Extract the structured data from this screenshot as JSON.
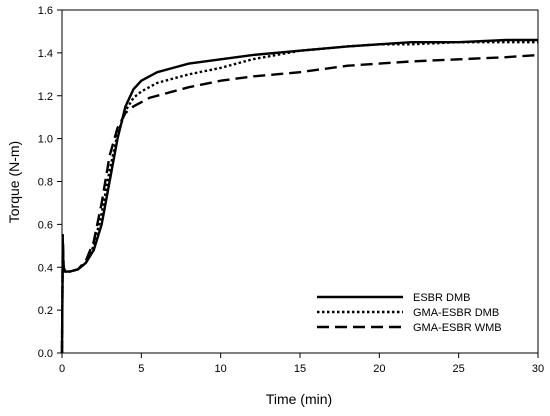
{
  "chart_data": {
    "type": "line",
    "xlabel": "Time (min)",
    "ylabel": "Torque (N-m)",
    "xlim": [
      0,
      30
    ],
    "ylim": [
      0.0,
      1.6
    ],
    "xticks": [
      0,
      5,
      10,
      15,
      20,
      25,
      30
    ],
    "xtick_labels": [
      "0",
      "5",
      "10",
      "15",
      "20",
      "25",
      "30"
    ],
    "yticks": [
      0.0,
      0.2,
      0.4,
      0.6,
      0.8,
      1.0,
      1.2,
      1.4,
      1.6
    ],
    "ytick_labels": [
      "0.0",
      "0.2",
      "0.4",
      "0.6",
      "0.8",
      "1.0",
      "1.2",
      "1.4",
      "1.6"
    ],
    "grid": false,
    "legend_position": "bottom-right",
    "series": [
      {
        "name": "ESBR DMB",
        "style": "solid",
        "x": [
          0,
          0.05,
          0.1,
          0.2,
          0.3,
          0.5,
          1.0,
          1.5,
          2.0,
          2.5,
          3.0,
          3.5,
          4.0,
          4.5,
          5.0,
          5.5,
          6.0,
          7.0,
          8.0,
          10.0,
          12.0,
          15.0,
          18.0,
          20.0,
          22.0,
          25.0,
          28.0,
          30.0
        ],
        "y": [
          0.0,
          0.5,
          0.4,
          0.38,
          0.38,
          0.38,
          0.39,
          0.42,
          0.48,
          0.6,
          0.8,
          1.0,
          1.15,
          1.23,
          1.27,
          1.29,
          1.31,
          1.33,
          1.35,
          1.37,
          1.39,
          1.41,
          1.43,
          1.44,
          1.45,
          1.45,
          1.46,
          1.46
        ]
      },
      {
        "name": "GMA-ESBR DMB",
        "style": "dotted",
        "x": [
          0,
          0.05,
          0.1,
          0.2,
          0.3,
          0.5,
          1.0,
          1.5,
          2.0,
          2.5,
          3.0,
          3.5,
          4.0,
          4.5,
          5.0,
          5.5,
          6.0,
          7.0,
          8.0,
          10.0,
          12.0,
          15.0,
          18.0,
          20.0,
          22.0,
          25.0,
          28.0,
          30.0
        ],
        "y": [
          0.0,
          0.52,
          0.4,
          0.38,
          0.38,
          0.38,
          0.39,
          0.42,
          0.5,
          0.65,
          0.85,
          1.02,
          1.13,
          1.19,
          1.22,
          1.24,
          1.26,
          1.28,
          1.3,
          1.33,
          1.37,
          1.41,
          1.43,
          1.44,
          1.44,
          1.45,
          1.45,
          1.45
        ]
      },
      {
        "name": "GMA-ESBR WMB",
        "style": "dashed",
        "x": [
          0,
          0.05,
          0.1,
          0.2,
          0.3,
          0.5,
          1.0,
          1.5,
          2.0,
          2.5,
          3.0,
          3.5,
          4.0,
          4.5,
          5.0,
          5.5,
          6.0,
          7.0,
          8.0,
          10.0,
          12.0,
          15.0,
          18.0,
          20.0,
          22.0,
          25.0,
          28.0,
          30.0
        ],
        "y": [
          0.0,
          0.55,
          0.4,
          0.38,
          0.38,
          0.38,
          0.39,
          0.43,
          0.52,
          0.7,
          0.92,
          1.05,
          1.12,
          1.15,
          1.17,
          1.19,
          1.2,
          1.22,
          1.24,
          1.27,
          1.29,
          1.31,
          1.34,
          1.35,
          1.36,
          1.37,
          1.38,
          1.39
        ]
      }
    ]
  }
}
